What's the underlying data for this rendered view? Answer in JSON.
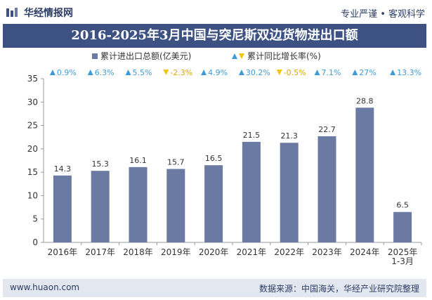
{
  "header": {
    "logo_text": "华经情报网",
    "slogan": "专业严谨 • 客观科学"
  },
  "title": "2016-2025年3月中国与突尼斯双边货物进出口额",
  "footer": {
    "website": "www.huaon.com",
    "source": "数据来源：中国海关，华经产业研究院整理"
  },
  "colors": {
    "bar": "#6b7aa3",
    "up_triangle": "#3f9bd6",
    "down_triangle": "#f5c400",
    "band": "#3d5283"
  },
  "chart_data": {
    "type": "bar",
    "categories": [
      "2016年",
      "2017年",
      "2018年",
      "2019年",
      "2020年",
      "2021年",
      "2022年",
      "2023年",
      "2024年",
      "2025年\n1-3月"
    ],
    "series": [
      {
        "name": "累计进出口总额(亿美元)",
        "values": [
          14.3,
          15.3,
          16.1,
          15.7,
          16.5,
          21.5,
          21.3,
          22.7,
          28.8,
          6.5
        ],
        "labels": [
          "14.3",
          "15.3",
          "16.1",
          "15.7",
          "16.5",
          "21.5",
          "21.3",
          "22.7",
          "28.8",
          "6.5"
        ]
      },
      {
        "name": "累计同比增长率(%)",
        "values": [
          0.9,
          6.3,
          5.5,
          -2.3,
          4.9,
          30.2,
          -0.5,
          7.1,
          27,
          13.3
        ],
        "labels": [
          "0.9%",
          "6.3%",
          "5.5%",
          "-2.3%",
          "4.9%",
          "30.2%",
          "-0.5%",
          "7.1%",
          "27%",
          "13.3%"
        ]
      }
    ],
    "ylim": [
      0,
      35
    ],
    "yticks": [
      0,
      5,
      10,
      15,
      20,
      25,
      30,
      35
    ],
    "grid": false,
    "legend": "top-center"
  }
}
